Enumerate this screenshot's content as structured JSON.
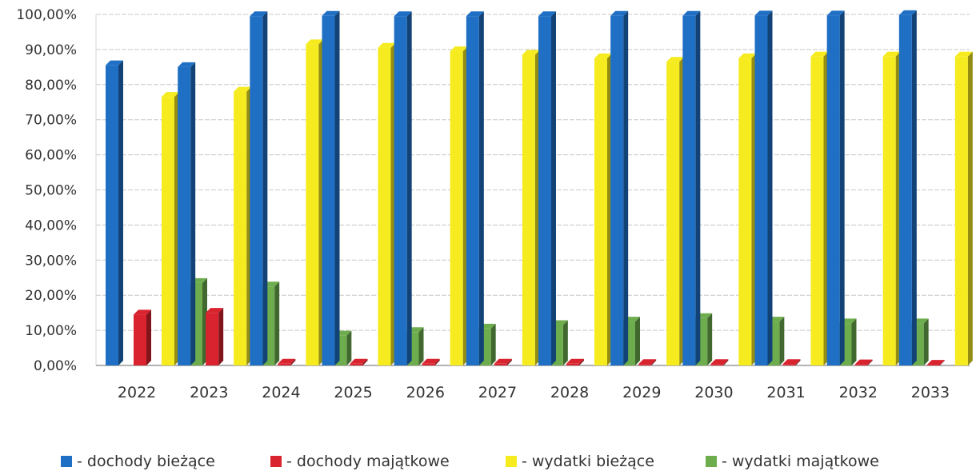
{
  "chart_data": {
    "type": "bar",
    "categories": [
      "2022",
      "2023",
      "2024",
      "2025",
      "2026",
      "2027",
      "2028",
      "2029",
      "2030",
      "2031",
      "2032",
      "2033"
    ],
    "series": [
      {
        "name": "- dochody bieżące",
        "color": "#1F6FC5",
        "values": [
          85.5,
          85.0,
          99.5,
          99.6,
          99.5,
          99.5,
          99.5,
          99.6,
          99.6,
          99.7,
          99.7,
          99.8
        ]
      },
      {
        "name": "- dochody majątkowe",
        "color": "#D9232E",
        "values": [
          14.5,
          15.0,
          0.5,
          0.5,
          0.5,
          0.5,
          0.5,
          0.4,
          0.4,
          0.4,
          0.3,
          0.2
        ]
      },
      {
        "name": "- wydatki bieżące",
        "color": "#F5EB1E",
        "values": [
          76.5,
          78.0,
          91.5,
          90.5,
          89.5,
          88.5,
          87.5,
          86.5,
          87.5,
          88.0,
          88.0,
          88.0
        ]
      },
      {
        "name": "- wydatki majątkowe",
        "color": "#6DAD4E",
        "values": [
          23.5,
          22.5,
          8.5,
          9.5,
          10.5,
          11.5,
          12.5,
          13.5,
          12.5,
          12.0,
          12.0,
          12.0
        ]
      }
    ],
    "yticks": [
      "0,00%",
      "10,00%",
      "20,00%",
      "30,00%",
      "40,00%",
      "50,00%",
      "60,00%",
      "70,00%",
      "80,00%",
      "90,00%",
      "100,00%"
    ],
    "ylim": [
      0,
      100
    ],
    "grid": true,
    "legend": "bottom"
  }
}
